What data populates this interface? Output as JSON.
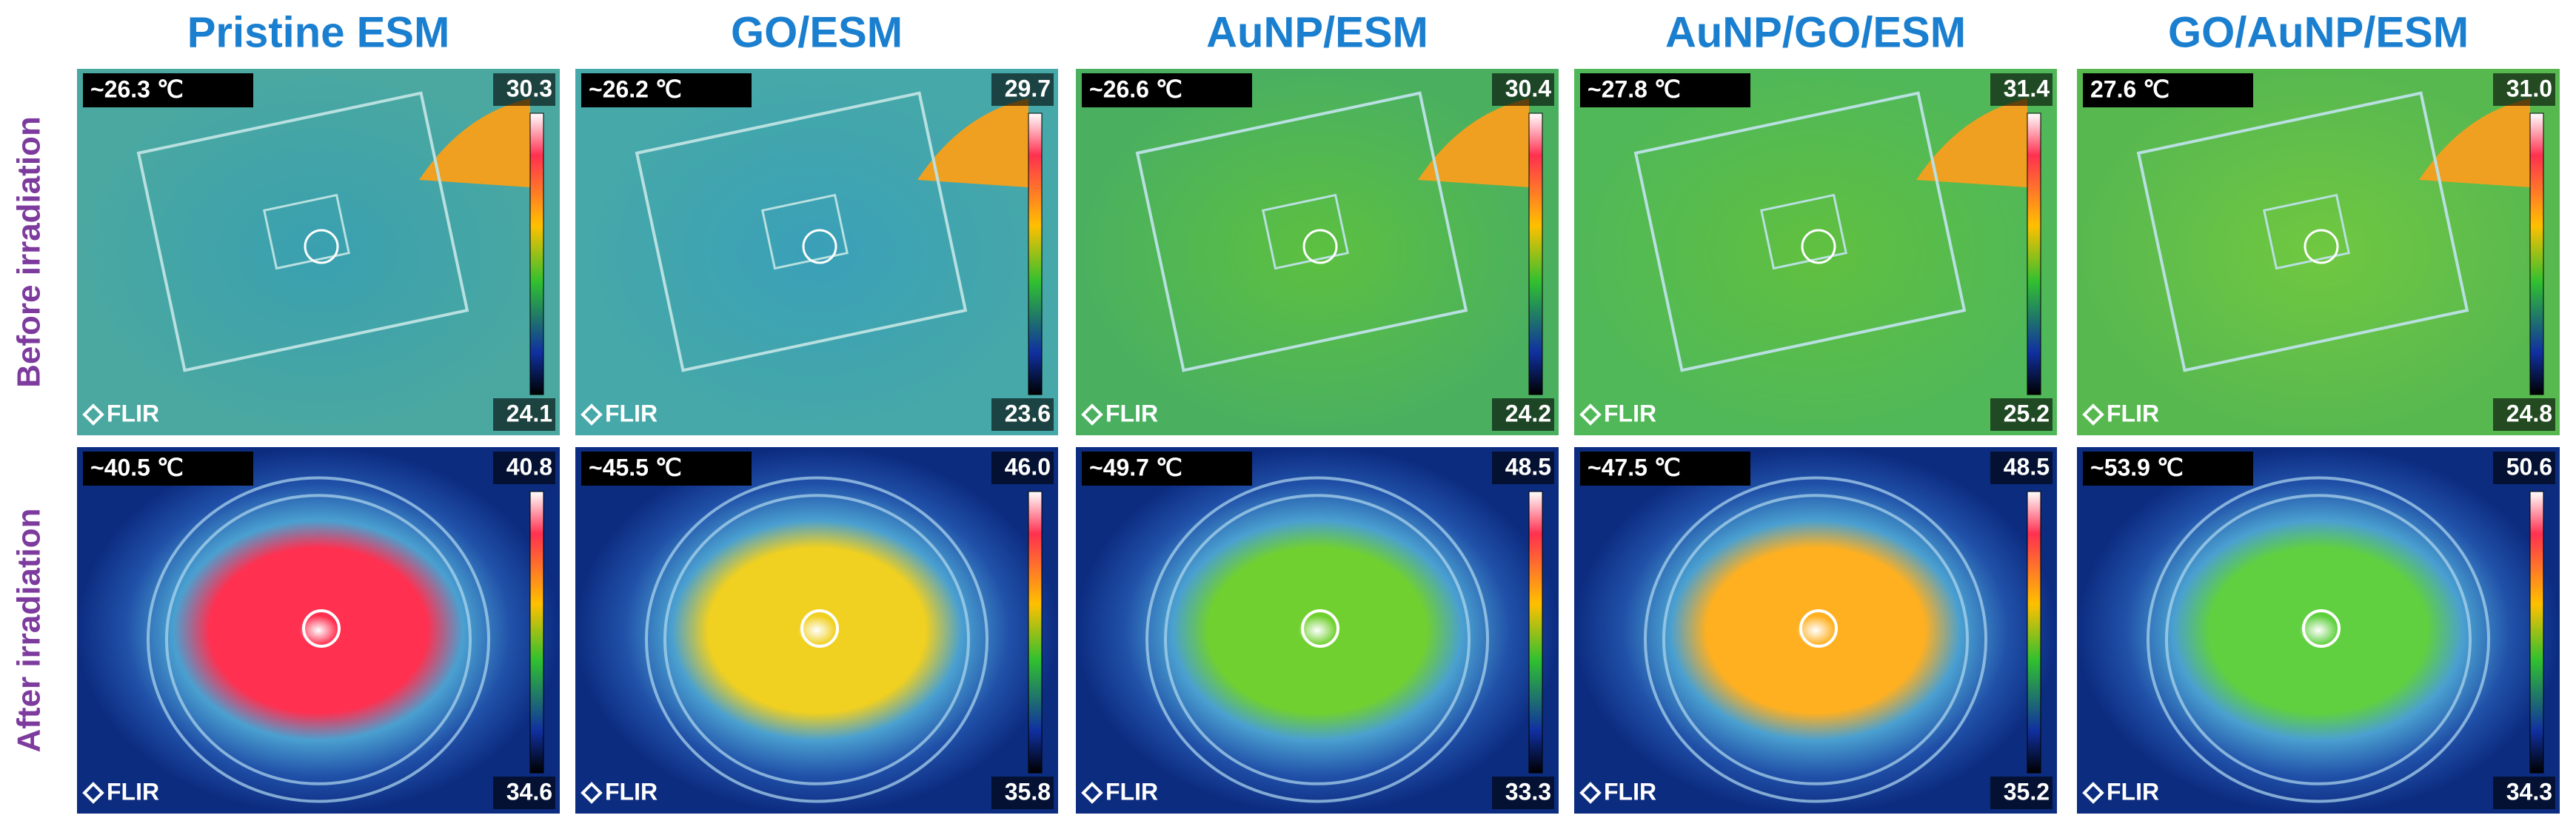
{
  "columns": [
    "Pristine ESM",
    "GO/ESM",
    "AuNP/ESM",
    "AuNP/GO/ESM",
    "GO/AuNP/ESM"
  ],
  "rows": [
    "Before irradiation",
    "After irradiation"
  ],
  "panels": [
    [
      {
        "spot": "~26.3 ℃",
        "max": "30.3",
        "min": "24.1",
        "logo": "FLIR"
      },
      {
        "spot": "~26.2 ℃",
        "max": "29.7",
        "min": "23.6",
        "logo": "FLIR"
      },
      {
        "spot": "~26.6 ℃",
        "max": "30.4",
        "min": "24.2",
        "logo": "FLIR"
      },
      {
        "spot": "~27.8 ℃",
        "max": "31.4",
        "min": "25.2",
        "logo": "FLIR"
      },
      {
        "spot": "27.6 ℃",
        "max": "31.0",
        "min": "24.8",
        "logo": "FLIR"
      }
    ],
    [
      {
        "spot": "~40.5 ℃",
        "max": "40.8",
        "min": "34.6",
        "logo": "FLIR"
      },
      {
        "spot": "~45.5 ℃",
        "max": "46.0",
        "min": "35.8",
        "logo": "FLIR"
      },
      {
        "spot": "~49.7 ℃",
        "max": "48.5",
        "min": "33.3",
        "logo": "FLIR"
      },
      {
        "spot": "~47.5 ℃",
        "max": "48.5",
        "min": "35.2",
        "logo": "FLIR"
      },
      {
        "spot": "~53.9 ℃",
        "max": "50.6",
        "min": "34.3",
        "logo": "FLIR"
      }
    ]
  ]
}
